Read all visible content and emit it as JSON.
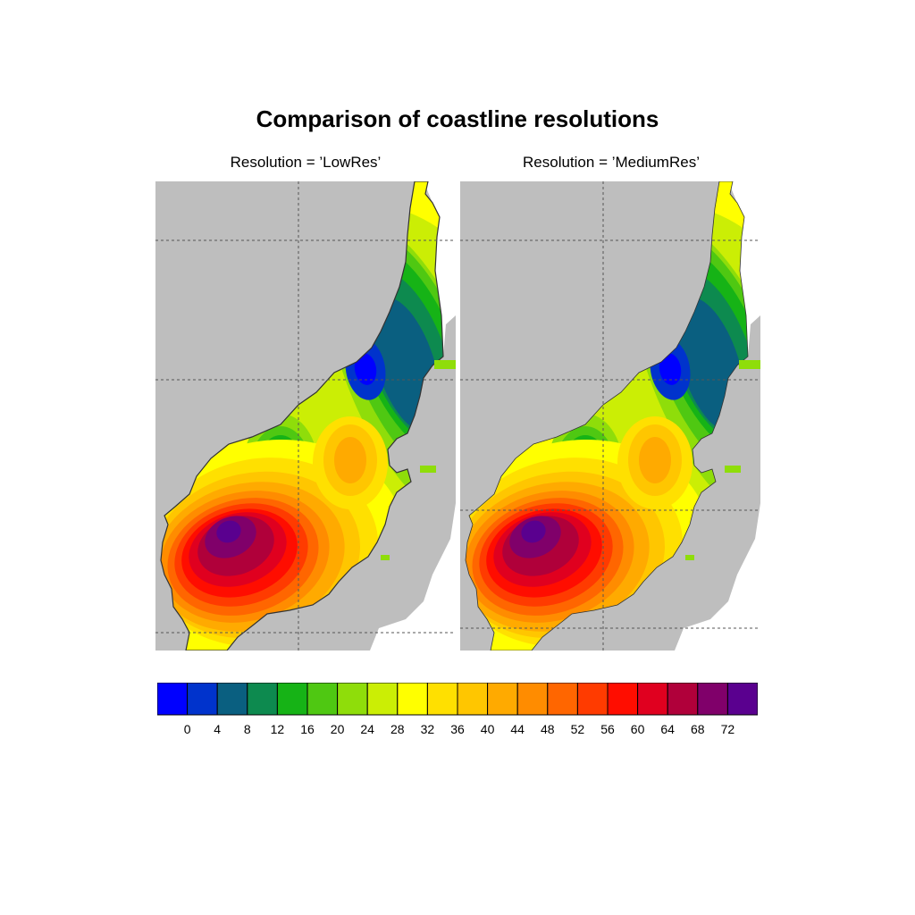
{
  "title": "Comparison of coastline resolutions",
  "panels": [
    {
      "subtitle": "Resolution = ’LowRes’"
    },
    {
      "subtitle": "Resolution = ’MediumRes’"
    }
  ],
  "colorbar": {
    "labels": [
      "0",
      "4",
      "8",
      "12",
      "16",
      "20",
      "24",
      "28",
      "32",
      "36",
      "40",
      "44",
      "48",
      "52",
      "56",
      "60",
      "64",
      "68",
      "72"
    ],
    "colors": [
      "#0000ff",
      "#0033cc",
      "#0a5f80",
      "#0d8a4f",
      "#16b316",
      "#4fc812",
      "#8fdd0a",
      "#cbee05",
      "#ffff00",
      "#ffe000",
      "#ffc600",
      "#ffaa00",
      "#ff8c00",
      "#ff6600",
      "#ff3b00",
      "#ff0d00",
      "#e0001f",
      "#b0003a",
      "#80006a",
      "#5a008f"
    ]
  },
  "map_colors": {
    "land": "#bebebe",
    "grid": "#555555",
    "coast": "#333333"
  }
}
